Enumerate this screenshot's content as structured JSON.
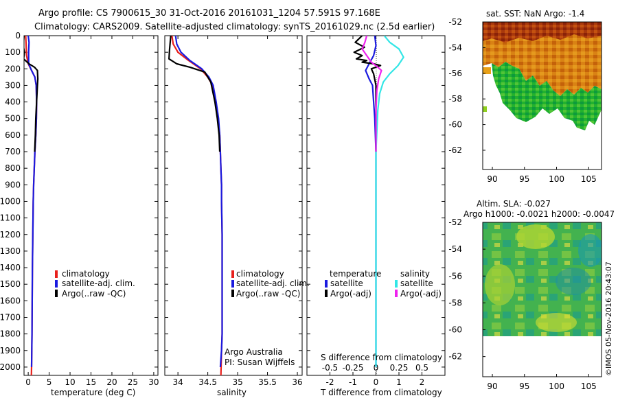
{
  "title_line1": "Argo profile: CS 7900615_30 31-Oct-2016 20161031_1204 57.591S 97.168E",
  "title_line2": "Climatology: CARS2009. Satellite-adjusted climatology: synTS_20161029.nc (2.5d earlier)",
  "watermark": "©IMOS 05-Nov-2016 20:43:07",
  "colors": {
    "climatology": "#e8201c",
    "satellite": "#1a1adf",
    "argo": "#000000",
    "sal_satellite": "#33e6e6",
    "sal_argo": "#ee22ee"
  },
  "chart_data": [
    {
      "id": "temperature",
      "type": "line",
      "xlabel": "temperature (deg C)",
      "ylim": [
        0,
        2050
      ],
      "y_reversed": true,
      "xlim": [
        -1,
        31
      ],
      "xticks": [
        0,
        5,
        10,
        15,
        20,
        25,
        30
      ],
      "yticks": [
        0,
        100,
        200,
        300,
        400,
        500,
        600,
        700,
        800,
        900,
        1000,
        1100,
        1200,
        1300,
        1400,
        1500,
        1600,
        1700,
        1800,
        1900,
        2000
      ],
      "legend": [
        "climatology",
        "satellite-adj. clim.",
        "Argo(..raw -QC)"
      ],
      "series": [
        {
          "name": "climatology",
          "x": [
            -0.6,
            -0.5,
            -0.4,
            0.0,
            0.8,
            1.6,
            1.9,
            2.0,
            1.95,
            1.8,
            1.6,
            1.45,
            1.3,
            1.2,
            1.1,
            1.0,
            0.95,
            0.9,
            0.85,
            0.8,
            0.75
          ],
          "y": [
            0,
            50,
            120,
            170,
            210,
            250,
            300,
            400,
            500,
            600,
            700,
            800,
            900,
            1000,
            1200,
            1400,
            1600,
            1800,
            1900,
            2000,
            2050
          ]
        },
        {
          "name": "satellite-adj. clim.",
          "x": [
            0.0,
            0.2,
            0.1,
            0.1,
            0.8,
            1.6,
            1.9,
            2.0,
            1.95,
            1.8,
            1.6,
            1.45,
            1.3,
            1.2,
            1.1,
            1.0,
            0.95,
            0.9,
            0.85,
            0.8
          ],
          "y": [
            0,
            40,
            100,
            170,
            210,
            250,
            300,
            400,
            500,
            600,
            700,
            800,
            900,
            1000,
            1200,
            1400,
            1600,
            1800,
            1900,
            2000
          ]
        },
        {
          "name": "Argo(..raw -QC)",
          "x": [
            -1.0,
            -1.1,
            -1.2,
            -0.9,
            -1.1,
            0.2,
            1.5,
            2.2,
            2.3,
            2.2,
            2.0,
            1.9,
            1.8,
            1.7,
            1.55
          ],
          "y": [
            0,
            30,
            60,
            100,
            140,
            170,
            190,
            210,
            260,
            300,
            400,
            450,
            500,
            600,
            700
          ]
        }
      ]
    },
    {
      "id": "salinity",
      "type": "line",
      "xlabel": "salinity",
      "ylim": [
        0,
        2050
      ],
      "y_reversed": true,
      "xlim": [
        33.78,
        36.08
      ],
      "xticks": [
        34,
        34.5,
        35,
        35.5,
        36
      ],
      "legend": [
        "climatology",
        "satellite-adj. clim.",
        "Argo(..raw -QC)"
      ],
      "annotation": [
        "Argo Australia",
        "PI: Susan Wijffels"
      ],
      "series": [
        {
          "name": "climatology",
          "x": [
            33.9,
            33.92,
            34.0,
            34.18,
            34.38,
            34.5,
            34.58,
            34.63,
            34.67,
            34.7,
            34.71,
            34.72,
            34.73,
            34.73,
            34.74,
            34.74,
            34.74,
            34.74,
            34.73,
            34.72
          ],
          "y": [
            0,
            50,
            100,
            150,
            200,
            250,
            300,
            400,
            500,
            600,
            700,
            800,
            900,
            1000,
            1200,
            1400,
            1600,
            1800,
            1900,
            2050
          ]
        },
        {
          "name": "satellite-adj. clim.",
          "x": [
            33.96,
            33.98,
            34.05,
            34.2,
            34.4,
            34.52,
            34.59,
            34.64,
            34.68,
            34.7,
            34.71,
            34.72,
            34.73,
            34.73,
            34.74,
            34.74,
            34.74,
            34.74,
            34.73,
            34.71
          ],
          "y": [
            0,
            50,
            100,
            150,
            200,
            250,
            300,
            400,
            500,
            600,
            700,
            800,
            900,
            1000,
            1200,
            1400,
            1600,
            1800,
            1900,
            2000
          ]
        },
        {
          "name": "Argo(..raw -QC)",
          "x": [
            33.88,
            33.86,
            33.85,
            33.98,
            34.2,
            34.45,
            34.55,
            34.62,
            34.66,
            34.69,
            34.7
          ],
          "y": [
            0,
            80,
            140,
            170,
            190,
            220,
            280,
            400,
            500,
            600,
            700
          ]
        }
      ]
    },
    {
      "id": "difference",
      "type": "line",
      "xlabel": "T difference from climatology",
      "xlabel_top": "S difference from climatology",
      "ylim": [
        0,
        2050
      ],
      "y_reversed": true,
      "xlim": [
        -3,
        3
      ],
      "xticks": [
        -2,
        -1,
        0,
        1,
        2
      ],
      "xticks_top": [
        -0.5,
        -0.25,
        0,
        0.25,
        0.5
      ],
      "legend_titles": [
        "temperature",
        "salinity"
      ],
      "legend": [
        "satellite",
        "Argo(-adj)",
        "satellite",
        "Argo(-adj)"
      ],
      "series": [
        {
          "name": "satellite (temperature)",
          "x": [
            -0.05,
            0.0,
            -0.1,
            -0.3,
            -0.45,
            -0.3,
            -0.15,
            -0.1,
            -0.05,
            0,
            0,
            0,
            0,
            0,
            0,
            0
          ],
          "y": [
            0,
            60,
            120,
            170,
            210,
            260,
            300,
            400,
            500,
            700,
            900,
            1100,
            1400,
            1700,
            1900,
            2000
          ]
        },
        {
          "name": "Argo(-adj) (temperature)",
          "x": [
            -0.6,
            -0.9,
            -0.5,
            -0.95,
            -0.6,
            -0.85,
            -0.4,
            -0.6,
            -0.1,
            0.2,
            -0.2,
            -0.1,
            0,
            0,
            0
          ],
          "y": [
            0,
            40,
            70,
            100,
            120,
            140,
            150,
            160,
            170,
            180,
            200,
            230,
            300,
            500,
            700
          ]
        },
        {
          "name": "satellite (salinity)",
          "x": [
            0.09,
            0.15,
            0.25,
            0.3,
            0.24,
            0.15,
            0.08,
            0.04,
            0.02,
            0.0,
            0.0,
            0.0
          ],
          "y": [
            0,
            40,
            80,
            130,
            180,
            230,
            280,
            350,
            450,
            700,
            1000,
            2000
          ]
        },
        {
          "name": "Argo(-adj) (salinity)",
          "x": [
            -0.1,
            -0.12,
            -0.15,
            -0.1,
            -0.05,
            0.02,
            0.06,
            0.03,
            0.01,
            0.0,
            0.0
          ],
          "y": [
            0,
            40,
            80,
            120,
            160,
            190,
            210,
            260,
            330,
            450,
            700
          ]
        }
      ]
    },
    {
      "id": "sst-map",
      "type": "heatmap",
      "title": "sat. SST: NaN Argo: -1.4",
      "xlim": [
        88.5,
        107
      ],
      "ylim": [
        -63.5,
        -52
      ],
      "xticks": [
        90,
        95,
        100,
        105
      ],
      "yticks": [
        -52,
        -54,
        -56,
        -58,
        -60,
        -62
      ]
    },
    {
      "id": "sla-map",
      "type": "heatmap",
      "title": "Altim. SLA: -0.027",
      "subtitle": "Argo h1000: -0.0021 h2000: -0.0047",
      "xlim": [
        88.5,
        107
      ],
      "ylim": [
        -63.5,
        -52
      ],
      "xticks": [
        90,
        95,
        100,
        105
      ],
      "yticks": [
        -52,
        -54,
        -56,
        -58,
        -60,
        -62
      ]
    }
  ]
}
